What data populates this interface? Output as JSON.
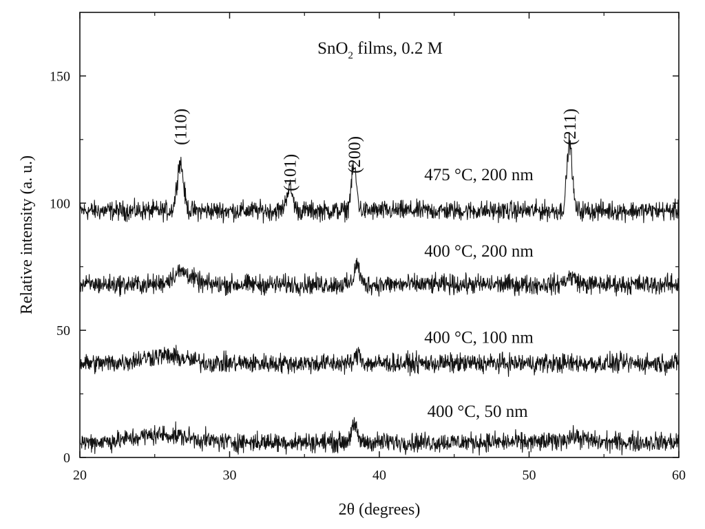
{
  "chart_data": {
    "type": "line",
    "title": "",
    "annotation": {
      "main": "SnO",
      "subscript": "2",
      "rest": " films, 0.2 M"
    },
    "xlabel": "2θ (degrees)",
    "ylabel": "Relative intensity (a. u.)",
    "xlim": [
      20,
      60
    ],
    "ylim": [
      0,
      175
    ],
    "xticks": [
      20,
      30,
      40,
      50,
      60
    ],
    "yticks": [
      0,
      50,
      100,
      150
    ],
    "xtick_labels": [
      "20",
      "30",
      "40",
      "50",
      "60"
    ],
    "ytick_labels": [
      "0",
      "50",
      "100",
      "150"
    ],
    "grid": false,
    "legend": "none",
    "line_color": "#111111",
    "peak_labels": [
      {
        "label": "(110)",
        "x": 26.7,
        "y": 130
      },
      {
        "label": "(101)",
        "x": 34.0,
        "y": 112
      },
      {
        "label": "(200)",
        "x": 38.3,
        "y": 119
      },
      {
        "label": "(211)",
        "x": 52.7,
        "y": 130
      }
    ],
    "series": [
      {
        "name": "475 °C, 200 nm",
        "label_x": 43.0,
        "label_y": 109,
        "baseline": 97,
        "noise": 3.5,
        "peaks": [
          {
            "x": 26.7,
            "height": 19,
            "width": 0.3
          },
          {
            "x": 34.0,
            "height": 9,
            "width": 0.3
          },
          {
            "x": 38.3,
            "height": 17,
            "width": 0.25
          },
          {
            "x": 52.7,
            "height": 27,
            "width": 0.25
          }
        ]
      },
      {
        "name": "400 °C, 200 nm",
        "label_x": 43.0,
        "label_y": 79,
        "baseline": 68,
        "noise": 3.5,
        "peaks": [
          {
            "x": 26.8,
            "height": 5,
            "width": 0.9
          },
          {
            "x": 38.5,
            "height": 8,
            "width": 0.25
          },
          {
            "x": 52.8,
            "height": 3,
            "width": 0.5
          }
        ]
      },
      {
        "name": "400 °C, 100 nm",
        "label_x": 43.0,
        "label_y": 45,
        "baseline": 37,
        "noise": 3.5,
        "peaks": [
          {
            "x": 25.5,
            "height": 3,
            "width": 2.0
          },
          {
            "x": 38.6,
            "height": 4,
            "width": 0.25
          }
        ]
      },
      {
        "name": "400 °C, 50 nm",
        "label_x": 43.2,
        "label_y": 16,
        "baseline": 6,
        "noise": 3.5,
        "peaks": [
          {
            "x": 25.5,
            "height": 3,
            "width": 2.5
          },
          {
            "x": 38.3,
            "height": 6,
            "width": 0.3
          },
          {
            "x": 53.0,
            "height": 2,
            "width": 1.0
          }
        ]
      }
    ]
  }
}
